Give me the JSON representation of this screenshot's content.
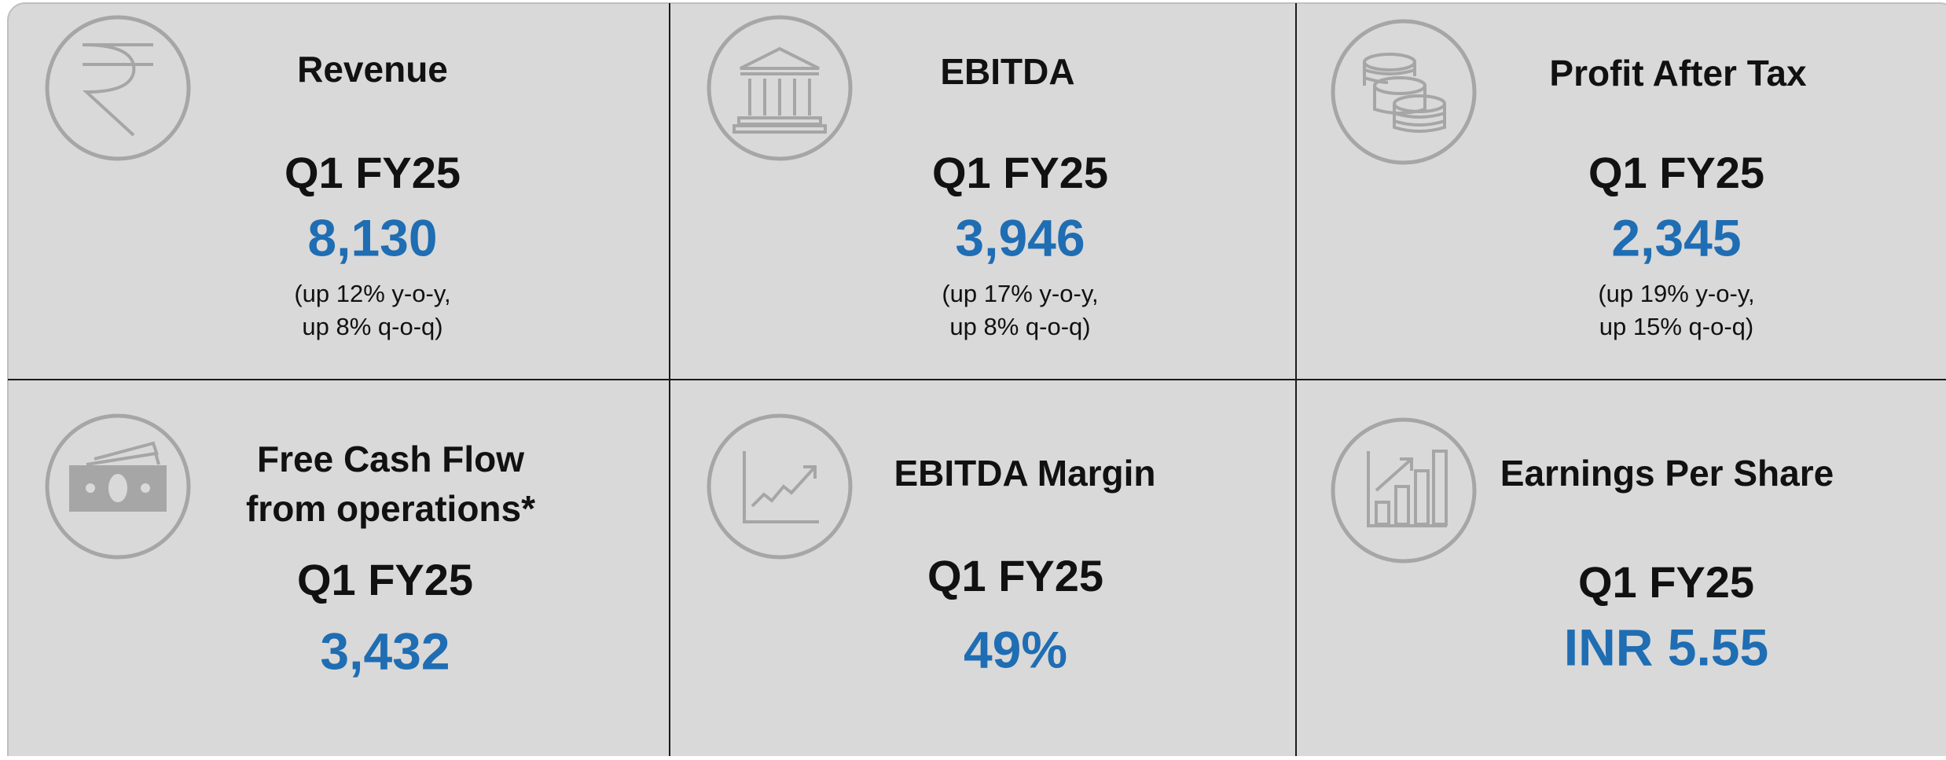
{
  "cards": [
    {
      "title_lines": [
        "Revenue"
      ],
      "period": "Q1 FY25",
      "value": "8,130",
      "note_lines": [
        "(up 12% y-o-y,",
        "up 8% q-o-q)"
      ]
    },
    {
      "title_lines": [
        "EBITDA"
      ],
      "period": "Q1 FY25",
      "value": "3,946",
      "note_lines": [
        "(up 17% y-o-y,",
        "up 8% q-o-q)"
      ]
    },
    {
      "title_lines": [
        "Profit After Tax"
      ],
      "period": "Q1 FY25",
      "value": "2,345",
      "note_lines": [
        "(up 19% y-o-y,",
        "up 15% q-o-q)"
      ]
    },
    {
      "title_lines": [
        "Free Cash Flow",
        "from operations*"
      ],
      "period": "Q1 FY25",
      "value": "3,432",
      "note_lines": []
    },
    {
      "title_lines": [
        "EBITDA Margin"
      ],
      "period": "Q1 FY25",
      "value": "49%",
      "note_lines": []
    },
    {
      "title_lines": [
        "Earnings Per Share"
      ],
      "period": "Q1 FY25",
      "value": "INR 5.55",
      "note_lines": []
    }
  ]
}
